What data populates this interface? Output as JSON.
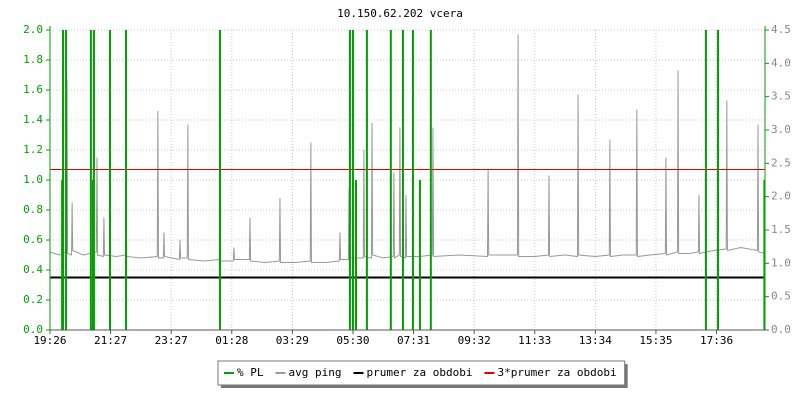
{
  "chart_data": {
    "type": "line",
    "title": "10.150.62.202 vcera",
    "xlim": [
      0,
      23.6
    ],
    "xticks": [
      {
        "value": 0,
        "label": "19:26"
      },
      {
        "value": 2,
        "label": "21:27"
      },
      {
        "value": 4,
        "label": "23:27"
      },
      {
        "value": 6,
        "label": "01:28"
      },
      {
        "value": 8,
        "label": "03:29"
      },
      {
        "value": 10,
        "label": "05:30"
      },
      {
        "value": 12,
        "label": "07:31"
      },
      {
        "value": 14,
        "label": "09:32"
      },
      {
        "value": 16,
        "label": "11:33"
      },
      {
        "value": 18,
        "label": "13:34"
      },
      {
        "value": 20,
        "label": "15:35"
      },
      {
        "value": 22,
        "label": "17:36"
      }
    ],
    "ylim": [
      0,
      2
    ],
    "yticks": [
      {
        "value": 0,
        "label": "0.0"
      },
      0.2,
      0.4,
      0.6,
      0.8,
      {
        "value": 1,
        "label": "1.0"
      },
      1.2,
      1.4,
      1.6,
      1.8,
      {
        "value": 2,
        "label": "2.0"
      }
    ],
    "y2lim": [
      0,
      4.5
    ],
    "y2ticks": [
      {
        "value": 0,
        "label": "0.0"
      },
      0.5,
      {
        "value": 1,
        "label": "1.0"
      },
      1.5,
      {
        "value": 2,
        "label": "2.0"
      },
      2.5,
      {
        "value": 3,
        "label": "3.0"
      },
      3.5,
      {
        "value": 4,
        "label": "4.0"
      },
      4.5
    ],
    "grid": true,
    "legend": "bottom",
    "series": [
      {
        "name": "% PL",
        "color": "#00a000",
        "kind": "bar",
        "x": [
          0.4,
          0.43,
          0.53,
          1.35,
          1.42,
          1.45,
          1.98,
          2.51,
          5.61,
          9.9,
          10.0,
          10.1,
          10.46,
          11.25,
          11.65,
          11.98,
          12.21,
          12.57,
          21.65,
          22.05,
          23.58
        ],
        "values": [
          1.0,
          2.0,
          2.0,
          2.0,
          1.0,
          2.0,
          2.0,
          2.0,
          2.0,
          2.0,
          2.0,
          1.0,
          2.0,
          2.0,
          2.0,
          2.0,
          1.0,
          2.0,
          2.0,
          2.0,
          1.0
        ]
      },
      {
        "name": "avg ping",
        "color": "#999999",
        "kind": "line",
        "x": [
          0,
          0.3,
          0.54,
          0.56,
          0.58,
          0.71,
          0.73,
          0.75,
          1.1,
          1.53,
          1.55,
          1.57,
          1.76,
          1.78,
          1.8,
          2.2,
          2.49,
          2.51,
          2.53,
          3.0,
          3.54,
          3.56,
          3.58,
          3.74,
          3.76,
          3.78,
          4.27,
          4.29,
          4.31,
          4.53,
          4.55,
          4.57,
          5.1,
          5.59,
          5.61,
          5.63,
          6.05,
          6.07,
          6.09,
          6.58,
          6.6,
          6.62,
          7.1,
          7.57,
          7.59,
          7.61,
          8.1,
          8.59,
          8.61,
          8.63,
          9.1,
          9.55,
          9.57,
          9.59,
          9.85,
          9.87,
          9.89,
          10.34,
          10.36,
          10.38,
          10.61,
          10.63,
          10.65,
          11.0,
          11.33,
          11.35,
          11.37,
          11.53,
          11.55,
          11.57,
          11.73,
          11.75,
          11.77,
          12.2,
          12.62,
          12.64,
          12.66,
          13.5,
          14.44,
          14.46,
          14.48,
          15.0,
          15.43,
          15.45,
          15.47,
          16.0,
          16.45,
          16.47,
          16.49,
          17.0,
          17.41,
          17.43,
          17.45,
          18.0,
          18.46,
          18.48,
          18.5,
          18.9,
          19.35,
          19.37,
          19.39,
          19.8,
          20.31,
          20.33,
          20.35,
          20.71,
          20.73,
          20.75,
          21.1,
          21.4,
          21.42,
          21.44,
          21.9,
          22.32,
          22.34,
          22.36,
          22.8,
          23.35,
          23.37,
          23.39,
          23.6
        ],
        "values": [
          0.52,
          0.5,
          0.52,
          1.67,
          0.51,
          0.5,
          0.85,
          0.53,
          0.5,
          0.52,
          1.15,
          0.5,
          0.49,
          0.75,
          0.5,
          0.49,
          0.5,
          1.08,
          0.49,
          0.48,
          0.49,
          1.46,
          0.48,
          0.48,
          0.65,
          0.49,
          0.47,
          0.6,
          0.48,
          0.48,
          1.37,
          0.47,
          0.46,
          0.47,
          1.22,
          0.46,
          0.46,
          0.55,
          0.47,
          0.47,
          0.75,
          0.46,
          0.45,
          0.46,
          0.88,
          0.45,
          0.45,
          0.46,
          1.25,
          0.45,
          0.45,
          0.46,
          0.65,
          0.47,
          0.47,
          0.95,
          0.48,
          0.48,
          1.2,
          0.49,
          0.48,
          1.38,
          0.5,
          0.48,
          0.49,
          1.05,
          0.48,
          0.5,
          1.35,
          0.49,
          0.48,
          0.9,
          0.49,
          0.49,
          0.5,
          1.35,
          0.49,
          0.5,
          0.49,
          1.07,
          0.5,
          0.5,
          0.5,
          1.97,
          0.49,
          0.49,
          0.5,
          1.03,
          0.49,
          0.5,
          0.49,
          1.57,
          0.5,
          0.49,
          0.5,
          1.27,
          0.49,
          0.5,
          0.5,
          1.47,
          0.49,
          0.5,
          0.51,
          1.15,
          0.5,
          0.52,
          1.73,
          0.51,
          0.51,
          0.52,
          0.9,
          0.51,
          0.53,
          0.54,
          1.53,
          0.53,
          0.55,
          0.53,
          1.37,
          0.52,
          0.51
        ]
      },
      {
        "name": "prumer za obdobi",
        "color": "#000000",
        "kind": "hline",
        "values": [
          0.35
        ]
      },
      {
        "name": "3*prumer za obdobi",
        "color": "#e00000",
        "kind": "hline",
        "values": [
          1.07
        ]
      }
    ]
  }
}
